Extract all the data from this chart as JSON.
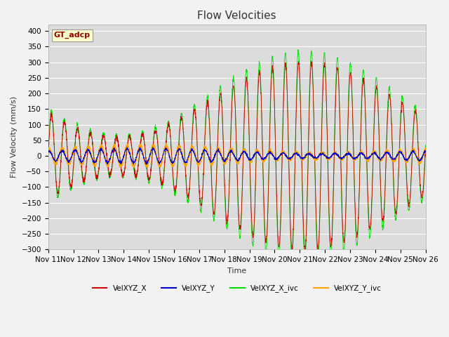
{
  "title": "Flow Velocities",
  "xlabel": "Time",
  "ylabel": "Flow Velocity (mm/s)",
  "ylim": [
    -300,
    420
  ],
  "yticks": [
    -300,
    -250,
    -200,
    -150,
    -100,
    -50,
    0,
    50,
    100,
    150,
    200,
    250,
    300,
    350,
    400
  ],
  "xtick_labels": [
    "Nov 11",
    "Nov 12",
    "Nov 13",
    "Nov 14",
    "Nov 15",
    "Nov 16",
    "Nov 17",
    "Nov 18",
    "Nov 19",
    "Nov 20",
    "Nov 21",
    "Nov 22",
    "Nov 23",
    "Nov 24",
    "Nov 25",
    "Nov 26"
  ],
  "annotation_text": "GT_adcp",
  "annotation_color": "#8B0000",
  "annotation_bg": "#FFFFCC",
  "bg_color": "#DCDCDC",
  "grid_color": "#FFFFFF",
  "fig_bg": "#F2F2F2",
  "series_colors": {
    "VelXYZ_X": "#CC0000",
    "VelXYZ_Y": "#0000CC",
    "VelXYZ_X_ivc": "#00DD00",
    "VelXYZ_Y_ivc": "#FFA500"
  },
  "title_fontsize": 11,
  "label_fontsize": 8,
  "tick_fontsize": 7.5
}
